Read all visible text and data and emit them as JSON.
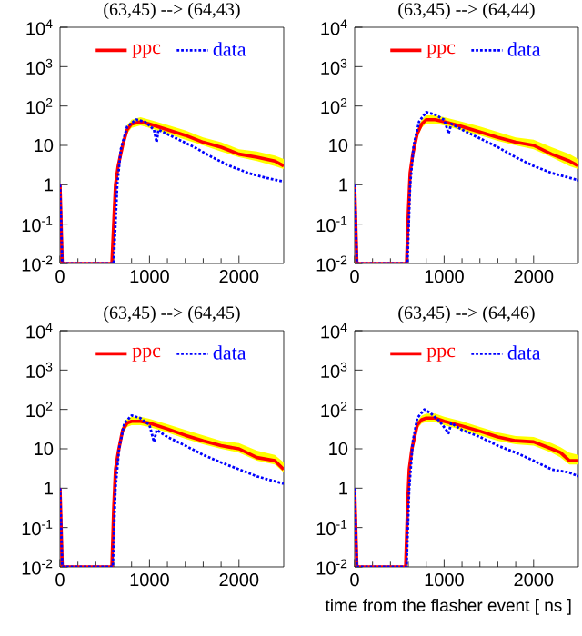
{
  "chart_data": [
    {
      "type": "line",
      "title": "(63,45) --> (64,43)",
      "xlim": [
        0,
        2500
      ],
      "ylim": [
        0.01,
        10000
      ],
      "log": "y",
      "legend": "top",
      "marker": "none",
      "xticks": [
        0,
        1000,
        2000
      ],
      "yticks": [
        {
          "value": 0.01,
          "label": "10$^{-2}$"
        },
        {
          "value": 0.1,
          "label": "10$^{-1}$"
        },
        1,
        10,
        {
          "value": 100,
          "label": "10$^{2}$"
        },
        {
          "value": 1000,
          "label": "10$^{3}$"
        },
        {
          "value": 10000,
          "label": "10$^{4}$"
        }
      ],
      "series": [
        {
          "name": "ppc",
          "color": "#ff0000",
          "line_style": "solid",
          "x": [
            0,
            25,
            580,
            600,
            620,
            650,
            700,
            750,
            800,
            900,
            1000,
            1200,
            1400,
            1600,
            1800,
            2000,
            2200,
            2400,
            2500
          ],
          "values": [
            1,
            0.01,
            0.01,
            0.1,
            1,
            3,
            10,
            25,
            35,
            40,
            35,
            25,
            18,
            12,
            9,
            6,
            5,
            4,
            3
          ],
          "lower": [
            1,
            0.01,
            0.01,
            0.08,
            0.8,
            2.4,
            8,
            20,
            28,
            32,
            28,
            20,
            14,
            10,
            7,
            5,
            4,
            3,
            2.5
          ],
          "upper": [
            1,
            0.01,
            0.01,
            0.13,
            1.3,
            4,
            13,
            32,
            45,
            52,
            45,
            33,
            24,
            16,
            12,
            8,
            7,
            5.5,
            4.5
          ]
        },
        {
          "name": "data",
          "color": "#0000ff",
          "line_style": "dotted",
          "x": [
            0,
            25,
            600,
            640,
            680,
            750,
            850,
            950,
            1050,
            1080,
            1100,
            1300,
            1500,
            1700,
            1900,
            2100,
            2300,
            2500
          ],
          "values": [
            1,
            0.01,
            0.01,
            1,
            8,
            30,
            45,
            40,
            25,
            12,
            25,
            15,
            9,
            5,
            3,
            2,
            1.5,
            1.2
          ]
        }
      ]
    },
    {
      "type": "line",
      "title": "(63,45) --> (64,44)",
      "xlim": [
        0,
        2500
      ],
      "ylim": [
        0.01,
        10000
      ],
      "log": "y",
      "legend": "top",
      "marker": "none",
      "xticks": [
        0,
        1000,
        2000
      ],
      "yticks": [
        {
          "value": 0.01,
          "label": "10$^{-2}$"
        },
        {
          "value": 0.1,
          "label": "10$^{-1}$"
        },
        1,
        10,
        {
          "value": 100,
          "label": "10$^{2}$"
        },
        {
          "value": 1000,
          "label": "10$^{3}$"
        },
        {
          "value": 10000,
          "label": "10$^{4}$"
        }
      ],
      "series": [
        {
          "name": "ppc",
          "color": "#ff0000",
          "line_style": "solid",
          "x": [
            0,
            25,
            580,
            600,
            620,
            650,
            700,
            750,
            800,
            900,
            1000,
            1200,
            1400,
            1600,
            1800,
            2000,
            2200,
            2400,
            2500
          ],
          "values": [
            1,
            0.01,
            0.01,
            0.2,
            2,
            6,
            20,
            35,
            45,
            45,
            40,
            30,
            22,
            16,
            12,
            10,
            6,
            4,
            3
          ],
          "lower": [
            1,
            0.01,
            0.01,
            0.15,
            1.6,
            5,
            16,
            28,
            36,
            36,
            32,
            24,
            18,
            13,
            10,
            8,
            5,
            3,
            2.5
          ],
          "upper": [
            1,
            0.01,
            0.01,
            0.25,
            2.6,
            8,
            26,
            45,
            58,
            58,
            52,
            40,
            30,
            22,
            16,
            14,
            9,
            6,
            4.5
          ]
        },
        {
          "name": "data",
          "color": "#0000ff",
          "line_style": "dotted",
          "x": [
            0,
            25,
            590,
            620,
            660,
            720,
            800,
            900,
            1000,
            1050,
            1080,
            1200,
            1400,
            1600,
            1800,
            2000,
            2200,
            2400,
            2500
          ],
          "values": [
            1,
            0.01,
            0.01,
            1,
            10,
            40,
            70,
            60,
            45,
            20,
            35,
            25,
            15,
            9,
            5,
            3,
            2,
            1.5,
            1.3
          ]
        }
      ]
    },
    {
      "type": "line",
      "title": "(63,45) --> (64,45)",
      "xlim": [
        0,
        2500
      ],
      "ylim": [
        0.01,
        10000
      ],
      "log": "y",
      "legend": "top",
      "marker": "none",
      "xticks": [
        0,
        1000,
        2000
      ],
      "yticks": [
        {
          "value": 0.01,
          "label": "10$^{-2}$"
        },
        {
          "value": 0.1,
          "label": "10$^{-1}$"
        },
        1,
        10,
        {
          "value": 100,
          "label": "10$^{2}$"
        },
        {
          "value": 1000,
          "label": "10$^{3}$"
        },
        {
          "value": 10000,
          "label": "10$^{4}$"
        }
      ],
      "series": [
        {
          "name": "ppc",
          "color": "#ff0000",
          "line_style": "solid",
          "x": [
            0,
            25,
            580,
            600,
            620,
            650,
            700,
            750,
            800,
            900,
            1000,
            1200,
            1400,
            1600,
            1800,
            2000,
            2200,
            2400,
            2500
          ],
          "values": [
            1,
            0.01,
            0.01,
            0.3,
            3,
            8,
            30,
            45,
            50,
            50,
            45,
            32,
            22,
            16,
            12,
            10,
            6,
            5,
            3
          ],
          "lower": [
            1,
            0.01,
            0.01,
            0.25,
            2.4,
            6.5,
            24,
            36,
            40,
            40,
            36,
            26,
            18,
            13,
            10,
            8,
            5,
            4,
            2.5
          ],
          "upper": [
            1,
            0.01,
            0.01,
            0.4,
            4,
            10,
            38,
            58,
            65,
            65,
            58,
            42,
            30,
            22,
            16,
            14,
            9,
            7,
            4.5
          ]
        },
        {
          "name": "data",
          "color": "#0000ff",
          "line_style": "dotted",
          "x": [
            0,
            25,
            590,
            620,
            660,
            720,
            800,
            900,
            1000,
            1050,
            1080,
            1200,
            1400,
            1600,
            1800,
            2000,
            2200,
            2400,
            2500
          ],
          "values": [
            1,
            0.01,
            0.01,
            1,
            10,
            45,
            70,
            60,
            40,
            15,
            30,
            20,
            12,
            7,
            4.5,
            3,
            2,
            1.5,
            1.3
          ]
        }
      ]
    },
    {
      "type": "line",
      "title": "(63,45) --> (64,46)",
      "xlabel": "time from the flasher event [ ns ]",
      "xlim": [
        0,
        2500
      ],
      "ylim": [
        0.01,
        10000
      ],
      "log": "y",
      "legend": "top",
      "marker": "none",
      "xticks": [
        0,
        1000,
        2000
      ],
      "yticks": [
        {
          "value": 0.01,
          "label": "10$^{-2}$"
        },
        {
          "value": 0.1,
          "label": "10$^{-1}$"
        },
        1,
        10,
        {
          "value": 100,
          "label": "10$^{2}$"
        },
        {
          "value": 1000,
          "label": "10$^{3}$"
        },
        {
          "value": 10000,
          "label": "10$^{4}$"
        }
      ],
      "series": [
        {
          "name": "ppc",
          "color": "#ff0000",
          "line_style": "solid",
          "x": [
            0,
            25,
            570,
            590,
            610,
            640,
            700,
            750,
            800,
            900,
            1000,
            1200,
            1400,
            1600,
            1800,
            2000,
            2200,
            2300,
            2400,
            2500
          ],
          "values": [
            1,
            0.01,
            0.01,
            0.3,
            3,
            10,
            40,
            55,
            60,
            60,
            50,
            38,
            28,
            20,
            16,
            15,
            10,
            8,
            5,
            5
          ],
          "lower": [
            1,
            0.01,
            0.01,
            0.25,
            2.4,
            8,
            32,
            44,
            48,
            48,
            40,
            30,
            22,
            16,
            13,
            12,
            8,
            6,
            4,
            4
          ],
          "upper": [
            1,
            0.01,
            0.01,
            0.4,
            4,
            13,
            50,
            70,
            78,
            78,
            65,
            50,
            36,
            26,
            21,
            20,
            14,
            11,
            8,
            7
          ]
        },
        {
          "name": "data",
          "color": "#0000ff",
          "line_style": "dotted",
          "x": [
            0,
            25,
            580,
            610,
            650,
            700,
            780,
            850,
            950,
            1050,
            1080,
            1200,
            1400,
            1600,
            1800,
            2000,
            2200,
            2400,
            2500
          ],
          "values": [
            1,
            0.01,
            0.01,
            1,
            15,
            60,
            100,
            80,
            50,
            25,
            45,
            30,
            20,
            12,
            8,
            5,
            3,
            2.5,
            2
          ]
        }
      ]
    }
  ]
}
